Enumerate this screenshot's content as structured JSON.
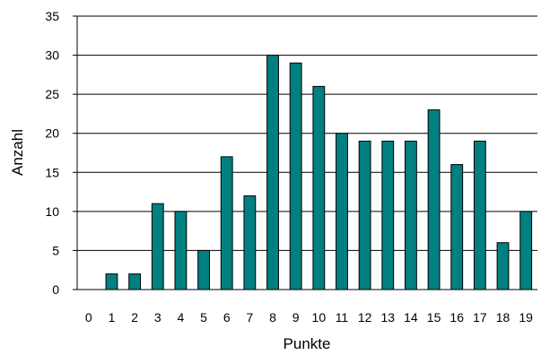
{
  "chart_data": {
    "type": "bar",
    "title": "",
    "xlabel": "Punkte",
    "ylabel": "Anzahl",
    "categories": [
      "0",
      "1",
      "2",
      "3",
      "4",
      "5",
      "6",
      "7",
      "8",
      "9",
      "10",
      "11",
      "12",
      "13",
      "14",
      "15",
      "16",
      "17",
      "18",
      "19"
    ],
    "values": [
      0,
      2,
      2,
      11,
      10,
      5,
      17,
      12,
      30,
      29,
      26,
      20,
      19,
      19,
      19,
      23,
      16,
      19,
      6,
      10
    ],
    "ylim": [
      0,
      35
    ],
    "yticks": [
      "0",
      "5",
      "10",
      "15",
      "20",
      "25",
      "30",
      "35"
    ],
    "grid": "horizontal",
    "legend": "none",
    "colors": {
      "bar_fill": "#008080",
      "bar_stroke": "#000000",
      "grid": "#000000",
      "axis": "#000000"
    }
  }
}
